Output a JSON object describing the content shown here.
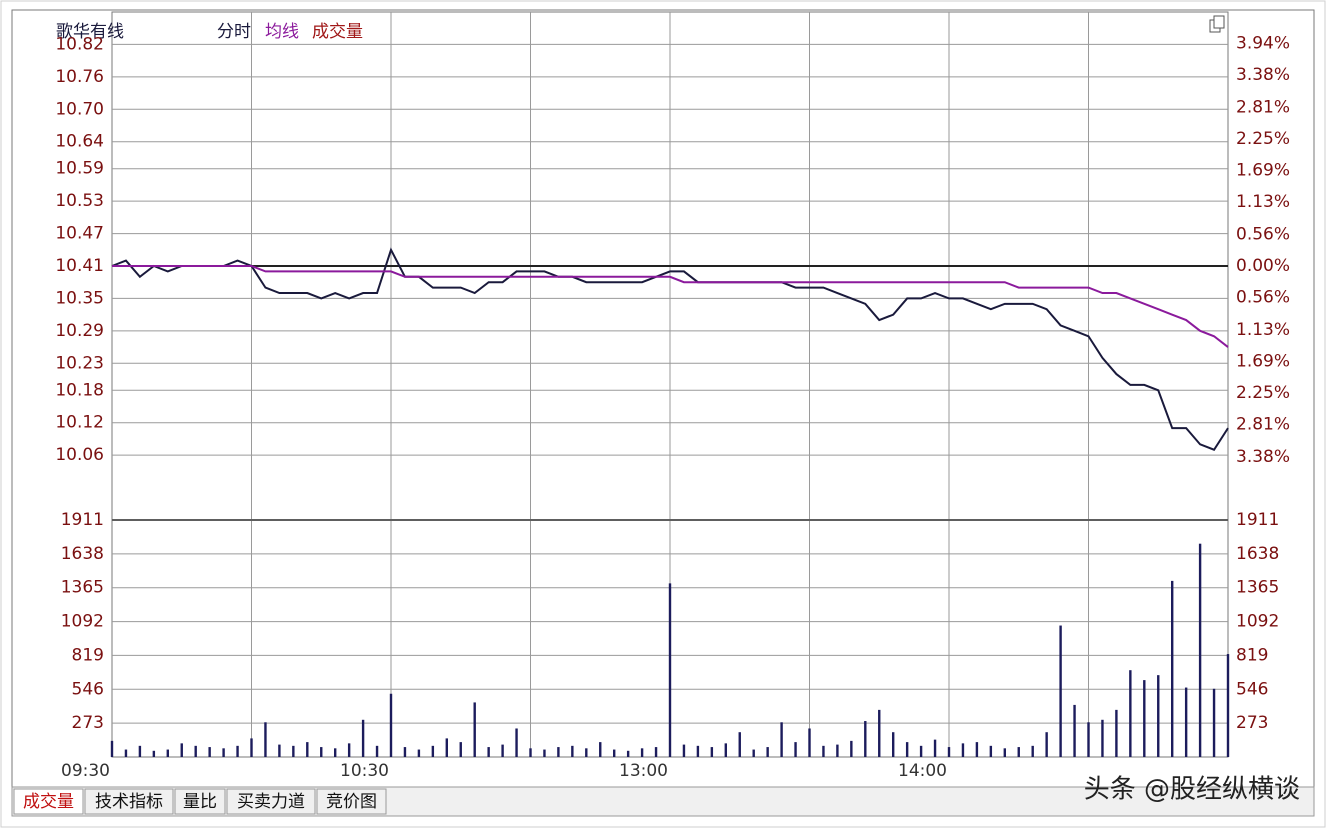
{
  "chart_data": [
    {
      "type": "line",
      "title": "歌华有线",
      "series": [
        {
          "name": "分时",
          "color": "#1a1a3c",
          "values": [
            10.41,
            10.42,
            10.39,
            10.41,
            10.4,
            10.41,
            10.41,
            10.41,
            10.41,
            10.42,
            10.41,
            10.37,
            10.36,
            10.36,
            10.36,
            10.35,
            10.36,
            10.35,
            10.36,
            10.36,
            10.44,
            10.39,
            10.39,
            10.37,
            10.37,
            10.37,
            10.36,
            10.38,
            10.38,
            10.4,
            10.4,
            10.4,
            10.39,
            10.39,
            10.38,
            10.38,
            10.38,
            10.38,
            10.38,
            10.39,
            10.4,
            10.4,
            10.38,
            10.38,
            10.38,
            10.38,
            10.38,
            10.38,
            10.38,
            10.37,
            10.37,
            10.37,
            10.36,
            10.35,
            10.34,
            10.31,
            10.32,
            10.35,
            10.35,
            10.36,
            10.35,
            10.35,
            10.34,
            10.33,
            10.34,
            10.34,
            10.34,
            10.33,
            10.3,
            10.29,
            10.28,
            10.24,
            10.21,
            10.19,
            10.19,
            10.18,
            10.11,
            10.11,
            10.08,
            10.07,
            10.11
          ]
        },
        {
          "name": "均线",
          "color": "#8b1a9c",
          "values": [
            10.41,
            10.41,
            10.41,
            10.41,
            10.41,
            10.41,
            10.41,
            10.41,
            10.41,
            10.41,
            10.41,
            10.4,
            10.4,
            10.4,
            10.4,
            10.4,
            10.4,
            10.4,
            10.4,
            10.4,
            10.4,
            10.39,
            10.39,
            10.39,
            10.39,
            10.39,
            10.39,
            10.39,
            10.39,
            10.39,
            10.39,
            10.39,
            10.39,
            10.39,
            10.39,
            10.39,
            10.39,
            10.39,
            10.39,
            10.39,
            10.39,
            10.38,
            10.38,
            10.38,
            10.38,
            10.38,
            10.38,
            10.38,
            10.38,
            10.38,
            10.38,
            10.38,
            10.38,
            10.38,
            10.38,
            10.38,
            10.38,
            10.38,
            10.38,
            10.38,
            10.38,
            10.38,
            10.38,
            10.38,
            10.38,
            10.37,
            10.37,
            10.37,
            10.37,
            10.37,
            10.37,
            10.36,
            10.36,
            10.35,
            10.34,
            10.33,
            10.32,
            10.31,
            10.29,
            10.28,
            10.26
          ]
        }
      ],
      "ylim": [
        9.94,
        10.88
      ],
      "yticks": [
        10.82,
        10.76,
        {
          "value": 10.7,
          "label": "10.70"
        },
        10.64,
        10.59,
        10.53,
        10.47,
        10.41,
        10.35,
        10.29,
        10.23,
        10.18,
        10.12,
        10.06
      ],
      "y2lim": [
        -4.5,
        4.5
      ],
      "y2ticks": [
        {
          "value": 3.94,
          "label": "3.94%"
        },
        {
          "value": 3.38,
          "label": "3.38%"
        },
        {
          "value": 2.81,
          "label": "2.81%"
        },
        {
          "value": 2.25,
          "label": "2.25%"
        },
        {
          "value": 1.69,
          "label": "1.69%"
        },
        {
          "value": 1.13,
          "label": "1.13%"
        },
        {
          "value": 0.56,
          "label": "0.56%"
        },
        {
          "value": 0,
          "label": "0.00%"
        },
        {
          "value": -0.56,
          "label": "0.56%"
        },
        {
          "value": -1.13,
          "label": "1.13%"
        },
        {
          "value": -1.69,
          "label": "1.69%"
        },
        {
          "value": -2.25,
          "label": "2.25%"
        },
        {
          "value": -2.81,
          "label": "2.81%"
        },
        {
          "value": -3.38,
          "label": "3.38%"
        }
      ],
      "grid": true
    },
    {
      "type": "bar",
      "categories": [
        "09:30",
        null,
        null,
        null,
        null,
        null,
        null,
        null,
        null,
        null,
        null,
        null,
        null,
        null,
        null,
        null,
        null,
        null,
        null,
        null,
        "10:30",
        null,
        null,
        null,
        null,
        null,
        null,
        null,
        null,
        null,
        null,
        null,
        null,
        null,
        null,
        null,
        null,
        null,
        null,
        null,
        "13:00",
        null,
        null,
        null,
        null,
        null,
        null,
        null,
        null,
        null,
        null,
        null,
        null,
        null,
        null,
        null,
        null,
        null,
        null,
        null,
        "14:00",
        null,
        null,
        null,
        null,
        null,
        null,
        null,
        null,
        null,
        null,
        null,
        null,
        null,
        null,
        null,
        null,
        null,
        null,
        null,
        null
      ],
      "series": [
        {
          "name": "成交量",
          "color": "#1c1c5c",
          "values": [
            130,
            60,
            90,
            50,
            60,
            110,
            90,
            80,
            70,
            90,
            150,
            280,
            100,
            90,
            120,
            80,
            70,
            110,
            300,
            90,
            510,
            80,
            60,
            90,
            150,
            120,
            440,
            80,
            100,
            230,
            70,
            60,
            80,
            90,
            70,
            120,
            60,
            50,
            70,
            80,
            1400,
            100,
            90,
            80,
            110,
            200,
            60,
            80,
            280,
            120,
            230,
            90,
            100,
            130,
            290,
            380,
            200,
            120,
            90,
            140,
            80,
            110,
            120,
            90,
            70,
            80,
            90,
            200,
            1060,
            420,
            280,
            300,
            380,
            700,
            620,
            660,
            1420,
            560,
            1720,
            550,
            830
          ]
        }
      ],
      "ylim": [
        0,
        1911
      ],
      "yticks": [
        273,
        546,
        819,
        1092,
        1365,
        1638,
        1911
      ],
      "y2lim": [
        0,
        1911
      ],
      "y2ticks": [
        273,
        546,
        819,
        1092,
        1365,
        1638,
        1911
      ],
      "grid": true
    }
  ],
  "tabs": [
    "成交量",
    "技术指标",
    "量比",
    "买卖力道",
    "竞价图"
  ],
  "watermark": "头条 @股经纵横谈"
}
